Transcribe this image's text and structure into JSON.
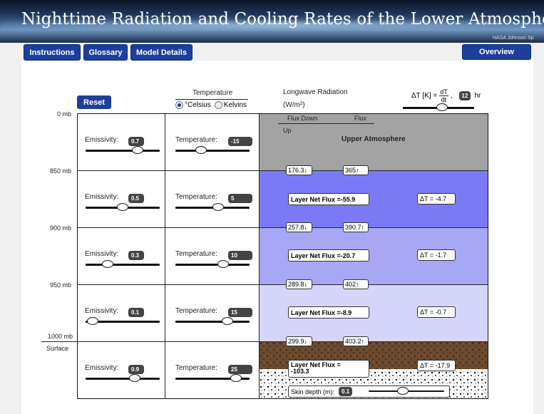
{
  "banner": {
    "title": "Nighttime Radiation and Cooling Rates of the Lower Atmosphere",
    "credit": "NASA Johnson Sp"
  },
  "nav": {
    "instructions": "Instructions",
    "glossary": "Glossary",
    "model_details": "Model Details",
    "overview": "Overview"
  },
  "controls": {
    "reset": "Reset",
    "temperature_header": "Temperature",
    "celsius": "°Celsius",
    "kelvins": "Kelvins",
    "unit_selected": "celsius",
    "longwave_header": "Longwave Radiation",
    "longwave_unit": "(W/m²)",
    "dt_label_prefix": "ΔT [K] =",
    "dt_num": "dT",
    "dt_den": "dt",
    "dt_sep": ",",
    "dt_value": "12",
    "dt_unit": "hr",
    "dt_slider_fraction": 0.55
  },
  "flux_headers": {
    "down": "Flux Down",
    "up_right": "Flux",
    "up": "Up",
    "upper_atmosphere": "Upper Atmosphere"
  },
  "pressure_labels": {
    "p0": "0 mb",
    "p850": "850 mb",
    "p900": "900 mb",
    "p950": "950 mb",
    "p1000": "1000  mb",
    "surface": "Surface"
  },
  "emissivity_label": "Emissivity:",
  "temperature_label": "Temperature:",
  "layers": [
    {
      "emissivity": "0.7",
      "emis_slider": 0.7,
      "temperature": "-15",
      "temp_slider": 0.35
    },
    {
      "emissivity": "0.5",
      "emis_slider": 0.5,
      "temperature": "5",
      "temp_slider": 0.58
    },
    {
      "emissivity": "0.3",
      "emis_slider": 0.3,
      "temperature": "10",
      "temp_slider": 0.64
    },
    {
      "emissivity": "0.1",
      "emis_slider": 0.1,
      "temperature": "15",
      "temp_slider": 0.7
    },
    {
      "emissivity": "0.9",
      "emis_slider": 0.66,
      "temperature": "25",
      "temp_slider": 0.82
    }
  ],
  "fluxes": [
    {
      "down": "176.3",
      "up": "365"
    },
    {
      "down": "257.8",
      "up": "390.7"
    },
    {
      "down": "289.8",
      "up": "402"
    },
    {
      "down": "299.9",
      "up": "403.2"
    }
  ],
  "net_flux_prefix": "Layer Net Flux = ",
  "net": [
    {
      "value": "-55.9",
      "dt": "ΔT = -4.7"
    },
    {
      "value": "-20.7",
      "dt": "ΔT = -1.7"
    },
    {
      "value": "-8.9",
      "dt": "ΔT = -0.7"
    },
    {
      "value": "-103.3",
      "dt": "ΔT = -17.9"
    }
  ],
  "surface_net_label": "Layer Net Flux =",
  "skin": {
    "label": "Skin depth (m):",
    "value": "0.1",
    "slider": 0.45
  },
  "colors": {
    "nav": "#1d3f9c",
    "upper": "#a3a3a3",
    "layer1": "#7a7af7",
    "layer2": "#a7a7f5",
    "layer3": "#d5d5fb",
    "soil": "#6b4a2e",
    "pebbles": "#ffffff"
  }
}
